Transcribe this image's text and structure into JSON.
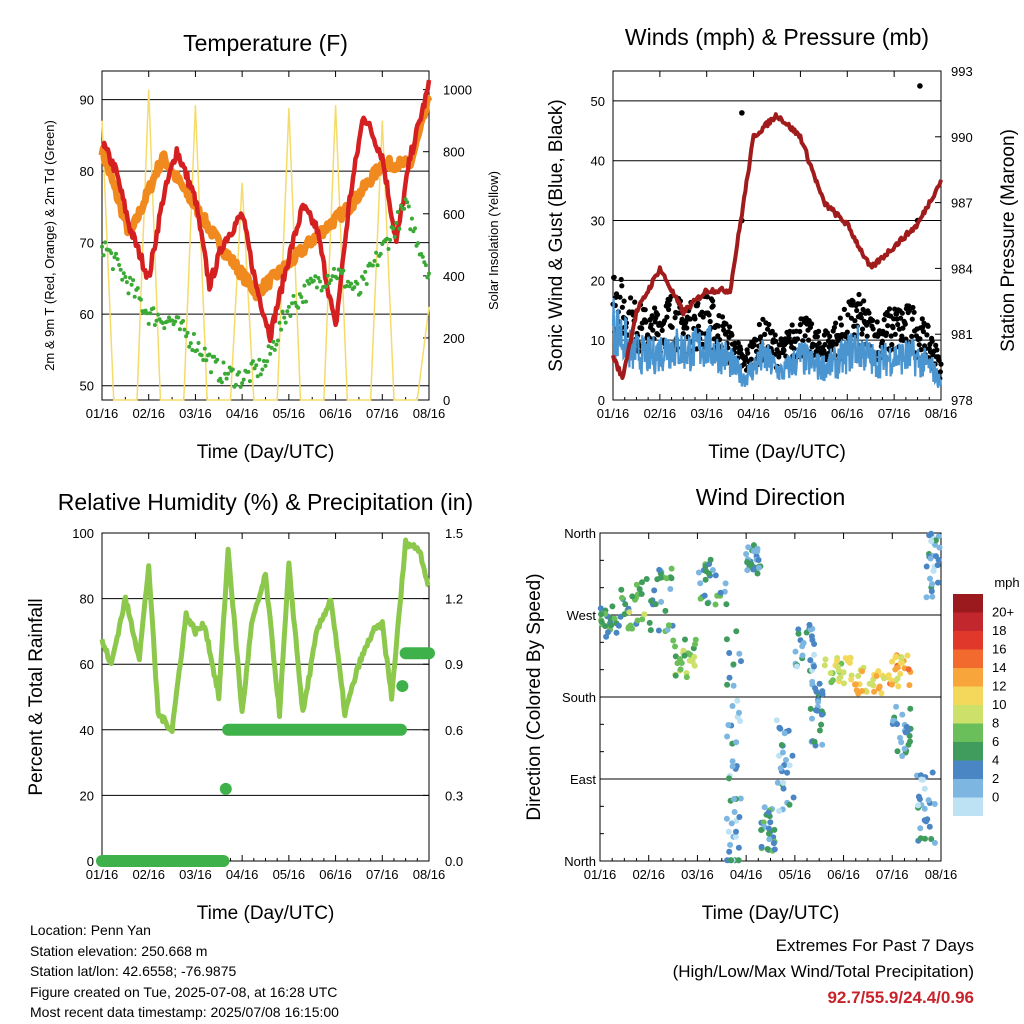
{
  "x_ticks": [
    "01/16",
    "02/16",
    "03/16",
    "04/16",
    "05/16",
    "06/16",
    "07/16",
    "08/16"
  ],
  "info": {
    "location": "Location: Penn Yan",
    "elevation": "Station elevation: 250.668 m",
    "latlon": "Station lat/lon: 42.6558; -76.9875",
    "created": "Figure created on Tue, 2025-07-08, at 16:28 UTC",
    "recent": "Most recent data timestamp: 2025/07/08 16:15:00"
  },
  "extremes": {
    "title": "Extremes For Past 7 Days",
    "subtitle": "(High/Low/Max Wind/Total Precipitation)",
    "values": "92.7/55.9/24.4/0.96"
  },
  "colors": {
    "temp2m": "#d42020",
    "temp9m": "#f08a1e",
    "dewpoint": "#3aaa35",
    "solar": "#f5dc6a",
    "wind": "#4a94d0",
    "gust": "#000000",
    "pressure": "#a01b1b",
    "rh": "#8cc84b",
    "precip": "#3fb14a"
  },
  "chart_data": [
    {
      "type": "line",
      "title": "Temperature (F)",
      "xlabel": "Time (Day/UTC)",
      "ylabel": "2m & 9m T (Red, Orange) & 2m Td (Green)",
      "ylabel_right": "Solar Insolation (Yellow)",
      "ylim": [
        48,
        94
      ],
      "yticks": [
        50,
        60,
        70,
        80,
        90
      ],
      "ylim_right": [
        0,
        1060
      ],
      "yticks_right": [
        0,
        200,
        400,
        600,
        800,
        1000
      ],
      "series": [
        {
          "name": "2m T",
          "x": [
            0,
            0.3,
            0.6,
            1.0,
            1.3,
            1.6,
            2.0,
            2.3,
            2.6,
            3.0,
            3.3,
            3.6,
            4.0,
            4.3,
            4.6,
            5.0,
            5.3,
            5.6,
            6.0,
            6.3,
            6.6,
            7.0
          ],
          "values": [
            84,
            80,
            72,
            65,
            76,
            83,
            76,
            64,
            70,
            74,
            64,
            57,
            68,
            75,
            72,
            58,
            76,
            88,
            82,
            70,
            82,
            92
          ]
        },
        {
          "name": "9m T",
          "x": [
            0,
            0.6,
            1.3,
            2.0,
            2.6,
            3.3,
            4.0,
            4.6,
            5.3,
            6.0,
            6.6,
            7.0
          ],
          "values": [
            83,
            71,
            82,
            75,
            69,
            63,
            67,
            71,
            75,
            81,
            81,
            90
          ]
        },
        {
          "name": "2m Td",
          "x": [
            0,
            0.5,
            1.0,
            1.5,
            2.0,
            2.5,
            3.0,
            3.5,
            4.0,
            4.5,
            5.0,
            5.5,
            6.0,
            6.5,
            7.0
          ],
          "values": [
            70,
            65,
            60,
            59,
            56,
            52,
            51,
            53,
            61,
            64,
            66,
            63,
            69,
            75,
            66
          ]
        },
        {
          "name": "Solar",
          "x": [
            0,
            0.25,
            0.5,
            0.75,
            1.0,
            1.25,
            1.5,
            1.75,
            2.0,
            2.25,
            2.5,
            2.75,
            3.0,
            3.25,
            3.5,
            3.75,
            4.0,
            4.25,
            4.5,
            4.75,
            5.0,
            5.25,
            5.5,
            5.75,
            6.0,
            6.25,
            6.5,
            6.75,
            7.0
          ],
          "values": [
            900,
            0,
            0,
            0,
            1000,
            0,
            0,
            0,
            950,
            0,
            0,
            0,
            700,
            0,
            0,
            0,
            940,
            0,
            0,
            0,
            950,
            0,
            0,
            0,
            900,
            0,
            0,
            0,
            300
          ]
        }
      ]
    },
    {
      "type": "scatter",
      "title": "Winds (mph) & Pressure (mb)",
      "xlabel": "Time (Day/UTC)",
      "ylabel": "Sonic Wind & Gust (Blue, Black)",
      "ylabel_right": "Station Pressure (Maroon)",
      "ylim": [
        0,
        55
      ],
      "yticks": [
        0,
        10,
        20,
        30,
        40,
        50
      ],
      "ylim_right": [
        978,
        993
      ],
      "yticks_right": [
        978,
        981,
        984,
        987,
        990,
        993
      ],
      "series": [
        {
          "name": "Wind",
          "x": [
            0,
            0.4,
            0.8,
            1.2,
            1.6,
            2.0,
            2.4,
            2.8,
            3.2,
            3.6,
            4.0,
            4.4,
            4.8,
            5.2,
            5.6,
            6.0,
            6.4,
            6.8,
            7.0
          ],
          "values": [
            14,
            9,
            8,
            10,
            9,
            10,
            8,
            4,
            8,
            5,
            8,
            6,
            7,
            10,
            7,
            8,
            8,
            6,
            3
          ]
        },
        {
          "name": "Gust",
          "x": [
            0,
            0.4,
            0.8,
            1.2,
            1.6,
            2.0,
            2.4,
            2.8,
            3.2,
            3.6,
            4.0,
            4.4,
            4.8,
            5.2,
            5.6,
            6.0,
            6.4,
            6.8,
            7.0
          ],
          "values": [
            20,
            15,
            13,
            16,
            14,
            16,
            12,
            7,
            12,
            9,
            13,
            10,
            12,
            16,
            12,
            14,
            14,
            10,
            6
          ]
        },
        {
          "name": "Pressure",
          "x": [
            0,
            0.2,
            0.5,
            1.0,
            1.5,
            2.0,
            2.5,
            3.0,
            3.5,
            4.0,
            4.5,
            5.0,
            5.5,
            6.0,
            6.5,
            7.0
          ],
          "values": [
            980,
            979,
            982,
            984,
            982,
            983,
            983,
            990,
            991,
            990,
            987,
            986,
            984,
            985,
            986,
            988
          ]
        }
      ]
    },
    {
      "type": "line",
      "title": "Relative Humidity (%) & Precipitation (in)",
      "xlabel": "Time (Day/UTC)",
      "ylabel": "Percent & Total Rainfall",
      "ylim": [
        0,
        100
      ],
      "yticks": [
        0,
        20,
        40,
        60,
        80,
        100
      ],
      "ylim_right": [
        0,
        1.5
      ],
      "yticks_right": [
        "0.0",
        "0.3",
        "0.6",
        "0.9",
        "1.2",
        "1.5"
      ],
      "series": [
        {
          "name": "RH",
          "x": [
            0,
            0.2,
            0.5,
            0.8,
            1.0,
            1.2,
            1.5,
            1.8,
            2.0,
            2.2,
            2.5,
            2.7,
            3.0,
            3.2,
            3.5,
            3.8,
            4.0,
            4.3,
            4.6,
            4.9,
            5.2,
            5.5,
            5.8,
            6.0,
            6.2,
            6.5,
            6.8,
            7.0
          ],
          "values": [
            67,
            60,
            80,
            62,
            90,
            45,
            40,
            75,
            70,
            72,
            50,
            95,
            45,
            72,
            87,
            45,
            90,
            45,
            70,
            80,
            45,
            60,
            70,
            72,
            50,
            97,
            95,
            83
          ]
        },
        {
          "name": "Precip",
          "x": [
            0,
            2.6,
            2.65,
            2.7,
            6.4,
            6.45,
            6.5,
            7.0
          ],
          "values": [
            0,
            0,
            0.33,
            0.6,
            0.6,
            0.8,
            0.95,
            0.95
          ]
        }
      ]
    },
    {
      "type": "scatter",
      "title": "Wind Direction",
      "xlabel": "Time (Day/UTC)",
      "ylabel": "Direction (Colored By Speed)",
      "yticks": [
        "North",
        "East",
        "South",
        "West",
        "North"
      ],
      "colorbar_title": "mph",
      "colorbar_labels": [
        "20+",
        "18",
        "16",
        "14",
        "12",
        "10",
        "8",
        "6",
        "4",
        "2",
        "0"
      ],
      "colorbar_colors": [
        "#9b1a1d",
        "#c1272d",
        "#e0382b",
        "#f26a2e",
        "#f8a53b",
        "#f3d85b",
        "#cde06a",
        "#6bbf5a",
        "#3f9c5c",
        "#4a86c3",
        "#7db7e1",
        "#bde2f4"
      ]
    }
  ]
}
